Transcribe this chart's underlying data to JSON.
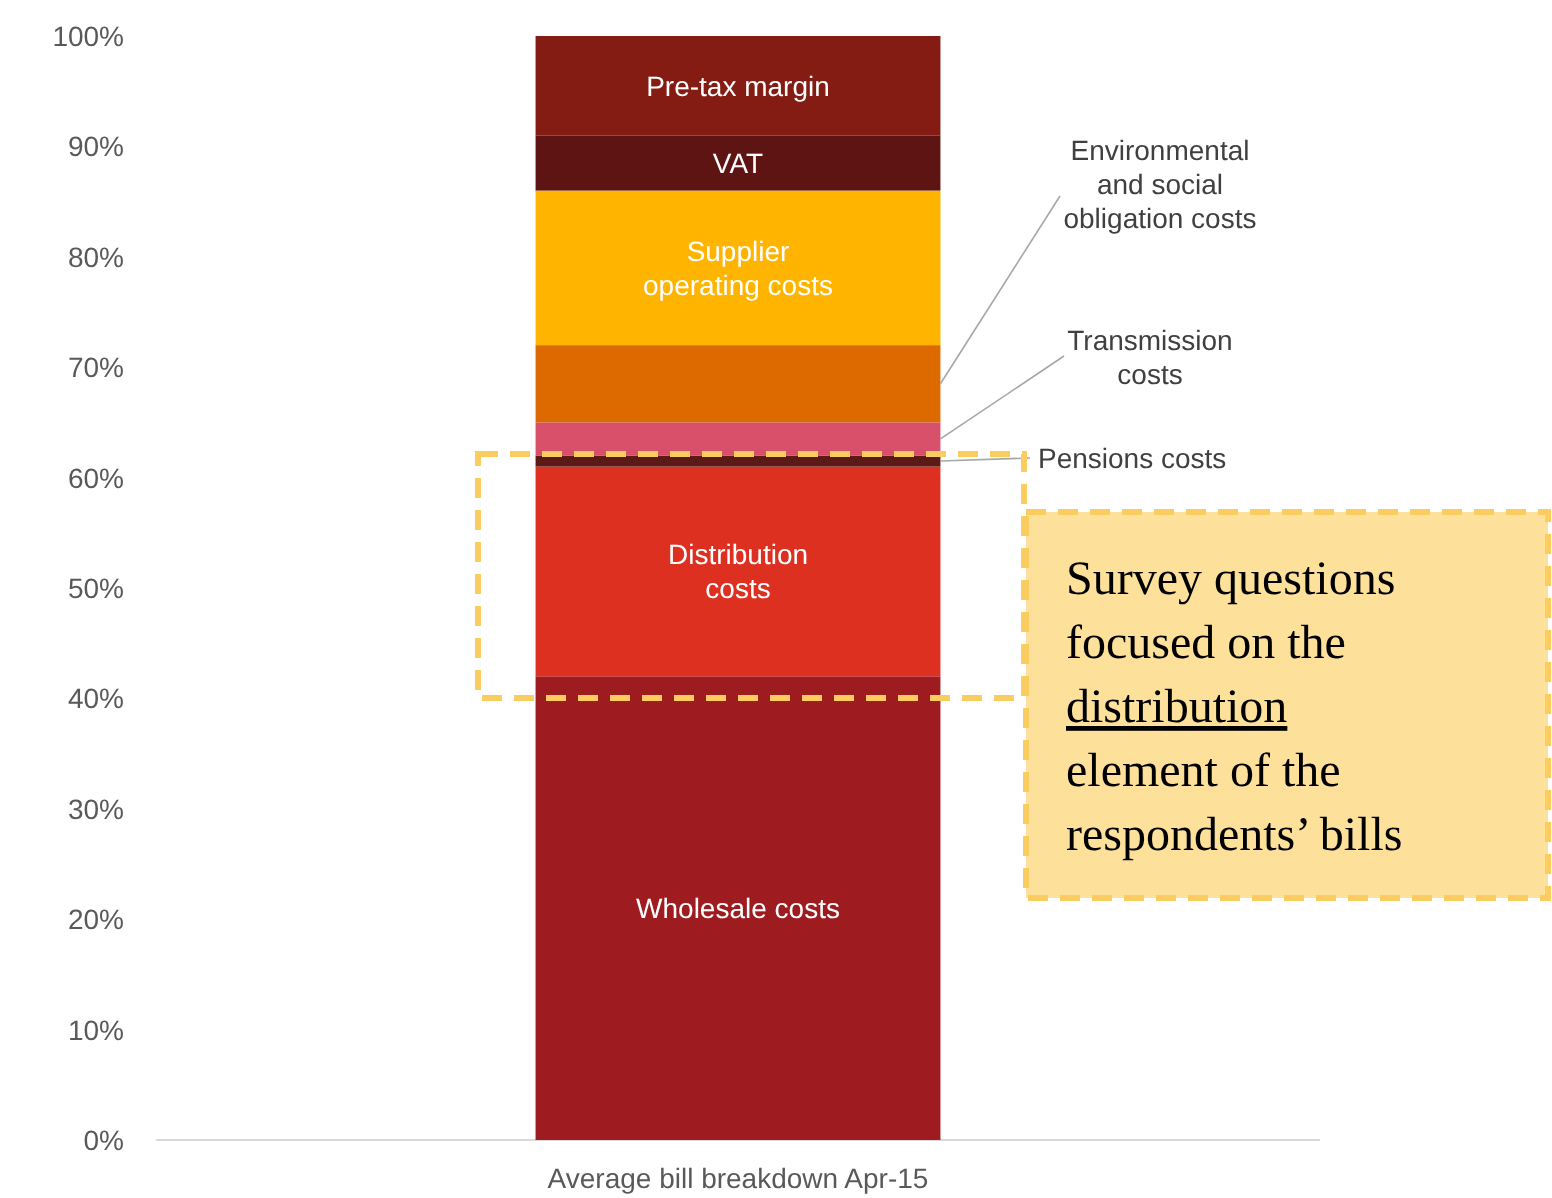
{
  "chart_data": {
    "type": "bar",
    "stacked": true,
    "categories": [
      "Average bill breakdown Apr-15"
    ],
    "series": [
      {
        "name": "Wholesale costs",
        "color": "#9e1c20",
        "values": [
          42
        ]
      },
      {
        "name": "Distribution costs",
        "color": "#de3020",
        "values": [
          19
        ]
      },
      {
        "name": "Pensions costs",
        "color": "#5c1a16",
        "values": [
          1
        ]
      },
      {
        "name": "Transmission costs",
        "color": "#d9506a",
        "values": [
          3
        ]
      },
      {
        "name": "Environmental and social obligation costs",
        "color": "#dc6a00",
        "values": [
          7
        ]
      },
      {
        "name": "Supplier operating costs",
        "color": "#ffb400",
        "values": [
          14
        ]
      },
      {
        "name": "VAT",
        "color": "#5f1414",
        "values": [
          5
        ]
      },
      {
        "name": "Pre-tax margin",
        "color": "#851c14",
        "values": [
          9
        ]
      }
    ],
    "ylim": [
      0,
      100
    ],
    "yticks": [
      {
        "value": 0,
        "label": "0%"
      },
      {
        "value": 10,
        "label": "10%"
      },
      {
        "value": 20,
        "label": "20%"
      },
      {
        "value": 30,
        "label": "30%"
      },
      {
        "value": 40,
        "label": "40%"
      },
      {
        "value": 50,
        "label": "50%"
      },
      {
        "value": 60,
        "label": "60%"
      },
      {
        "value": 70,
        "label": "70%"
      },
      {
        "value": 80,
        "label": "80%"
      },
      {
        "value": 90,
        "label": "90%"
      },
      {
        "value": 100,
        "label": "100%"
      }
    ],
    "grid": false,
    "annotations": [
      "Survey questions focused on the distribution element of the respondents’ bills"
    ]
  }
}
